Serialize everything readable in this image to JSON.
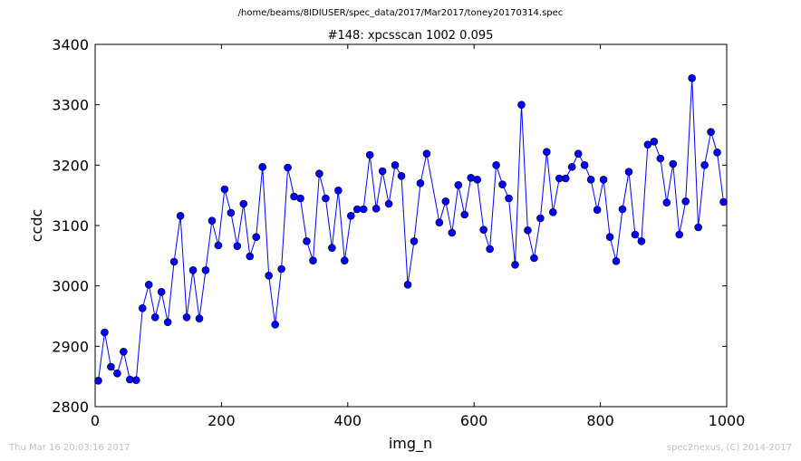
{
  "figure": {
    "suptitle": "/home/beams/8IDIUSER/spec_data/2017/Mar2017/toney20170314.spec",
    "footer_left": "Thu Mar 16 20:03:16 2017",
    "footer_right": "spec2nexus, (C) 2014-2017",
    "line_color": "#0000ff",
    "marker_color": "#0000ff"
  },
  "chart_data": {
    "type": "line",
    "title": "#148: xpcsscan 1002 0.095",
    "xlabel": "img_n",
    "ylabel": "ccdc",
    "xlim": [
      0,
      1000
    ],
    "ylim": [
      2800,
      3400
    ],
    "xticks": [
      0,
      200,
      400,
      600,
      800,
      1000
    ],
    "yticks": [
      2800,
      2900,
      3000,
      3100,
      3200,
      3300,
      3400
    ],
    "grid": false,
    "legend": "none",
    "series": [
      {
        "x": [
          5,
          15,
          25,
          35,
          45,
          55,
          65,
          75,
          85,
          95,
          105,
          115,
          125,
          135,
          145,
          155,
          165,
          175,
          185,
          195,
          205,
          215,
          225,
          235,
          245,
          255,
          265,
          275,
          285,
          295,
          305,
          315,
          325,
          335,
          345,
          355,
          365,
          375,
          385,
          395,
          405,
          415,
          425,
          435,
          445,
          455,
          465,
          475,
          485,
          495,
          505,
          515,
          525,
          545,
          555,
          565,
          575,
          585,
          595,
          605,
          615,
          625,
          635,
          645,
          655,
          665,
          675,
          685,
          695,
          705,
          715,
          725,
          735,
          745,
          755,
          765,
          775,
          785,
          795,
          805,
          815,
          825,
          835,
          845,
          855,
          865,
          875,
          885,
          895,
          905,
          915,
          925,
          935,
          945,
          955,
          965,
          975,
          985,
          995
        ],
        "y": [
          2843,
          2923,
          2866,
          2855,
          2891,
          2845,
          2844,
          2963,
          3002,
          2948,
          2990,
          2940,
          3040,
          3116,
          2948,
          3026,
          2946,
          3026,
          3108,
          3067,
          3160,
          3121,
          3066,
          3136,
          3049,
          3081,
          3197,
          3017,
          2936,
          3028,
          3196,
          3148,
          3145,
          3074,
          3042,
          3186,
          3145,
          3063,
          3158,
          3042,
          3116,
          3127,
          3127,
          3217,
          3128,
          3190,
          3136,
          3200,
          3182,
          3002,
          3074,
          3170,
          3219,
          3105,
          3140,
          3088,
          3167,
          3118,
          3179,
          3176,
          3093,
          3061,
          3200,
          3168,
          3145,
          3035,
          3300,
          3092,
          3046,
          3112,
          3222,
          3122,
          3178,
          3178,
          3197,
          3219,
          3200,
          3176,
          3126,
          3176,
          3081,
          3041,
          3127,
          3189,
          3085,
          3074,
          3234,
          3239,
          3211,
          3138,
          3202,
          3085,
          3140,
          3344,
          3097,
          3200,
          3255,
          3221,
          3139
        ]
      }
    ]
  }
}
